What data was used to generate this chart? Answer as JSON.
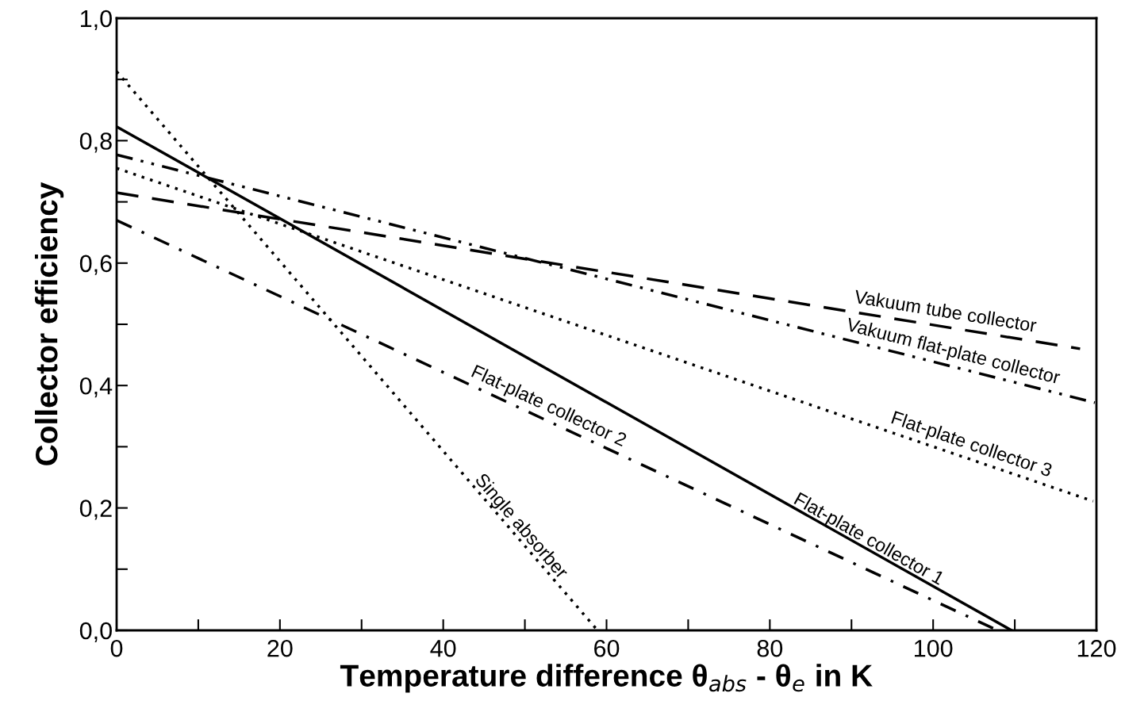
{
  "chart_data": {
    "type": "line",
    "xlabel": "Temperature difference θ$_{abs}$ - θ$_{e}$ in K",
    "ylabel": "Collector efficiency",
    "xlim": [
      0,
      120
    ],
    "ylim": [
      0,
      1
    ],
    "xticks": [
      0,
      {
        "value": 10,
        "label": null
      },
      20,
      {
        "value": 30,
        "label": null
      },
      40,
      {
        "value": 50,
        "label": null
      },
      60,
      {
        "value": 70,
        "label": null
      },
      80,
      {
        "value": 90,
        "label": null
      },
      100,
      {
        "value": 110,
        "label": null
      },
      120
    ],
    "yticks": [
      {
        "value": 0,
        "label": "0,0"
      },
      {
        "value": 0.1,
        "label": null
      },
      {
        "value": 0.2,
        "label": "0,2"
      },
      {
        "value": 0.3,
        "label": null
      },
      {
        "value": 0.4,
        "label": "0,4"
      },
      {
        "value": 0.5,
        "label": null
      },
      {
        "value": 0.6,
        "label": "0,6"
      },
      {
        "value": 0.7,
        "label": null
      },
      {
        "value": 0.8,
        "label": "0,8"
      },
      {
        "value": 0.9,
        "label": null
      },
      {
        "value": 1.0,
        "label": "1,0"
      }
    ],
    "grid": false,
    "legend": false,
    "series": [
      {
        "name": "Vakuum tube collector",
        "color": "#000000",
        "line_style": "dashed",
        "x": [
          0,
          118
        ],
        "values": [
          0.715,
          0.46
        ]
      },
      {
        "name": "Vakuum flat-plate collector",
        "color": "#000000",
        "line_style": "dashdotdot",
        "x": [
          0,
          119.8
        ],
        "values": [
          0.777,
          0.372
        ]
      },
      {
        "name": "Flat-plate collector 3",
        "color": "#000000",
        "line_style": "dotted",
        "x": [
          0,
          119.6
        ],
        "values": [
          0.755,
          0.211
        ]
      },
      {
        "name": "Flat-plate collector 2",
        "color": "#000000",
        "line_style": "dashdot",
        "x": [
          0,
          107.9
        ],
        "values": [
          0.67,
          0
        ]
      },
      {
        "name": "Flat-plate collector 1",
        "color": "#000000",
        "line_style": "solid",
        "x": [
          0,
          109.6
        ],
        "values": [
          0.823,
          0
        ]
      },
      {
        "name": "Single absorber",
        "color": "#000000",
        "line_style": "dotted",
        "x": [
          0,
          58.9
        ],
        "values": [
          0.913,
          0
        ]
      }
    ]
  }
}
